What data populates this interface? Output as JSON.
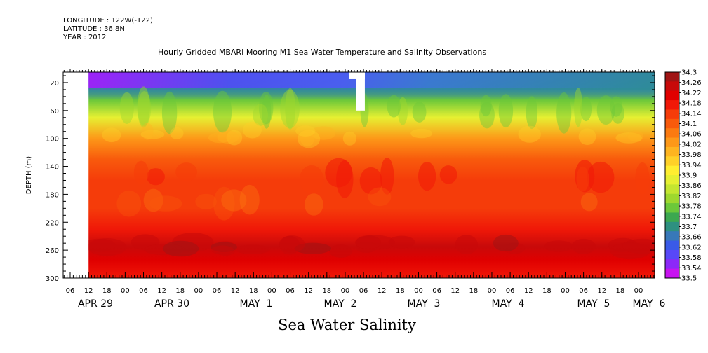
{
  "meta": {
    "longitude": "LONGITUDE : 122W(-122)",
    "latitude": "LATITUDE : 36.8N",
    "year": "YEAR : 2012"
  },
  "chart_data": {
    "type": "heatmap",
    "title": "Hourly Gridded MBARI Mooring M1 Sea Water Temperature and Salinity Observations",
    "variable_title": "Sea Water Salinity",
    "ylabel": "DEPTH (m)",
    "y_ticks": [
      20,
      60,
      100,
      140,
      180,
      220,
      260,
      300
    ],
    "ylim": [
      5,
      300
    ],
    "y_reversed": true,
    "x_hour_ticks": [
      "06",
      "12",
      "18",
      "00",
      "06",
      "12",
      "18",
      "00",
      "06",
      "12",
      "18",
      "00",
      "06",
      "12",
      "18",
      "00",
      "06",
      "12",
      "18",
      "00",
      "06",
      "12",
      "18",
      "00",
      "06",
      "12",
      "18",
      "00",
      "06",
      "12",
      "18",
      "00"
    ],
    "x_day_labels": [
      "APR 29",
      "APR 30",
      "MAY  1",
      "MAY  2",
      "MAY  3",
      "MAY  4",
      "MAY  5",
      "MAY  6"
    ],
    "data_start": "APR 29 12",
    "colorbar": {
      "levels": [
        "34.3",
        "34.26",
        "34.22",
        "34.18",
        "34.14",
        "34.1",
        "34.06",
        "34.02",
        "33.98",
        "33.94",
        "33.9",
        "33.86",
        "33.82",
        "33.78",
        "33.74",
        "33.7",
        "33.66",
        "33.62",
        "33.58",
        "33.54",
        "33.5"
      ],
      "colors": [
        "#a01414",
        "#c80a0a",
        "#e00000",
        "#f01808",
        "#f53c0a",
        "#f85a0c",
        "#fb7a10",
        "#fd9818",
        "#feb420",
        "#ffd028",
        "#ffee30",
        "#e6f032",
        "#c4e630",
        "#9ed82e",
        "#6cc83a",
        "#3ca850",
        "#2e9080",
        "#3878b8",
        "#3a5ae8",
        "#5848f8",
        "#8c28f8",
        "#c812f0"
      ]
    },
    "depth_profile": [
      {
        "depth": 10,
        "value": 33.56
      },
      {
        "depth": 25,
        "value": 33.66
      },
      {
        "depth": 45,
        "value": 33.76
      },
      {
        "depth": 70,
        "value": 33.9
      },
      {
        "depth": 100,
        "value": 34.02
      },
      {
        "depth": 130,
        "value": 34.1
      },
      {
        "depth": 160,
        "value": 34.15
      },
      {
        "depth": 200,
        "value": 34.16
      },
      {
        "depth": 230,
        "value": 34.2
      },
      {
        "depth": 255,
        "value": 34.27
      },
      {
        "depth": 275,
        "value": 34.24
      },
      {
        "depth": 300,
        "value": 34.2
      }
    ],
    "missing_data": "APR 29 06 – APR 29 12"
  }
}
